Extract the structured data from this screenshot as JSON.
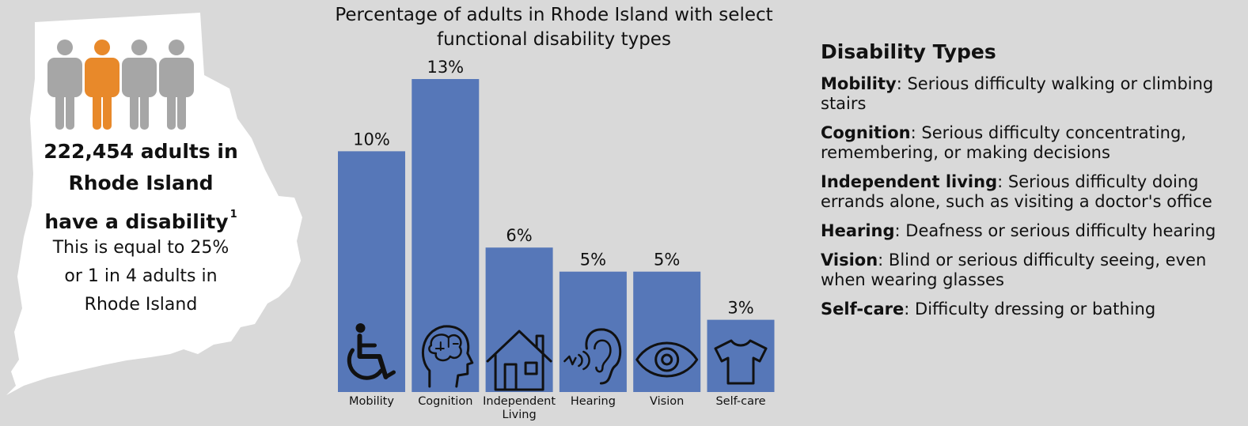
{
  "colors": {
    "background": "#d9d9d9",
    "bar": "#5677b8",
    "person_gray": "#a6a6a6",
    "person_highlight": "#e8892a",
    "map_fill": "#ffffff"
  },
  "left_panel": {
    "people_count": 4,
    "highlighted_index": 1,
    "headline_lines": [
      "222,454 adults in",
      "Rhode Island",
      "have a disability"
    ],
    "footnote_marker": "1",
    "subtext_lines": [
      "This is equal to 25%",
      "or 1 in 4 adults in",
      "Rhode Island"
    ]
  },
  "chart_data": {
    "type": "bar",
    "title": "Percentage of adults in Rhode Island with select functional disability types",
    "title_lines": [
      "Percentage of adults in Rhode Island with select",
      "functional disability types"
    ],
    "categories": [
      "Mobility",
      "Cognition",
      "Independent Living",
      "Hearing",
      "Vision",
      "Self-care"
    ],
    "category_lines": [
      [
        "Mobility"
      ],
      [
        "Cognition"
      ],
      [
        "Independent",
        "Living"
      ],
      [
        "Hearing"
      ],
      [
        "Vision"
      ],
      [
        "Self-care"
      ]
    ],
    "values": [
      10,
      13,
      6,
      5,
      5,
      3
    ],
    "value_labels": [
      "10%",
      "13%",
      "6%",
      "5%",
      "5%",
      "3%"
    ],
    "icons": [
      "wheelchair-icon",
      "brain-head-icon",
      "house-icon",
      "ear-icon",
      "eye-icon",
      "shirt-icon"
    ],
    "ylim": [
      0,
      13
    ],
    "grid": false,
    "xlabel": "",
    "ylabel": ""
  },
  "types_panel": {
    "heading": "Disability Types",
    "items": [
      {
        "term": "Mobility",
        "desc": ": Serious difficulty walking or climbing stairs"
      },
      {
        "term": "Cognition",
        "desc": ": Serious difficulty concentrating, remembering, or making decisions"
      },
      {
        "term": "Independent living",
        "desc": ": Serious difficulty doing errands alone, such as visiting a doctor's office"
      },
      {
        "term": "Hearing",
        "desc": ": Deafness or serious difficulty hearing"
      },
      {
        "term": "Vision",
        "desc": ": Blind or serious difficulty seeing, even when wearing glasses"
      },
      {
        "term": "Self-care",
        "desc": ": Difficulty dressing or bathing"
      }
    ]
  }
}
